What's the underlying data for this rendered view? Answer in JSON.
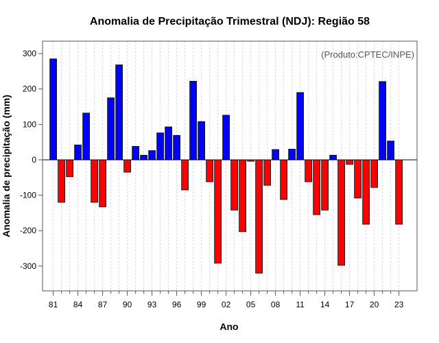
{
  "chart_data": {
    "type": "bar",
    "title": "Anomalia de Precipitação Trimestral (NDJ): Região 58",
    "xlabel": "Ano",
    "ylabel": "Anomalia de precipitação (mm)",
    "credit": "(Produto:CPTEC/INPE)",
    "ylim": [
      -370,
      335
    ],
    "y_ticks": [
      -300,
      -200,
      -100,
      0,
      100,
      200,
      300
    ],
    "x_tick_labels": [
      "81",
      "84",
      "87",
      "90",
      "93",
      "96",
      "99",
      "02",
      "05",
      "08",
      "11",
      "14",
      "17",
      "20",
      "23"
    ],
    "x_tick_every": 3,
    "categories": [
      "1981",
      "1982",
      "1983",
      "1984",
      "1985",
      "1986",
      "1987",
      "1988",
      "1989",
      "1990",
      "1991",
      "1992",
      "1993",
      "1994",
      "1995",
      "1996",
      "1997",
      "1998",
      "1999",
      "2000",
      "2001",
      "2002",
      "2003",
      "2004",
      "2005",
      "2006",
      "2007",
      "2008",
      "2009",
      "2010",
      "2011",
      "2012",
      "2013",
      "2014",
      "2015",
      "2016",
      "2017",
      "2018",
      "2019",
      "2020",
      "2021",
      "2022",
      "2023"
    ],
    "values": [
      285,
      -120,
      -48,
      42,
      132,
      -120,
      -133,
      175,
      268,
      -35,
      38,
      13,
      26,
      76,
      93,
      69,
      -85,
      222,
      108,
      -62,
      -292,
      126,
      -142,
      -203,
      -4,
      -320,
      -72,
      29,
      -112,
      30,
      190,
      -62,
      -155,
      -142,
      13,
      -298,
      -13,
      -108,
      -182,
      -78,
      221,
      53,
      -182
    ],
    "colors": {
      "positive": "#0000ff",
      "negative": "#ff0000",
      "zero_line": "#000000",
      "grid": "#d9d9d9"
    },
    "grid": "vertical-dotted",
    "legend": "none"
  }
}
